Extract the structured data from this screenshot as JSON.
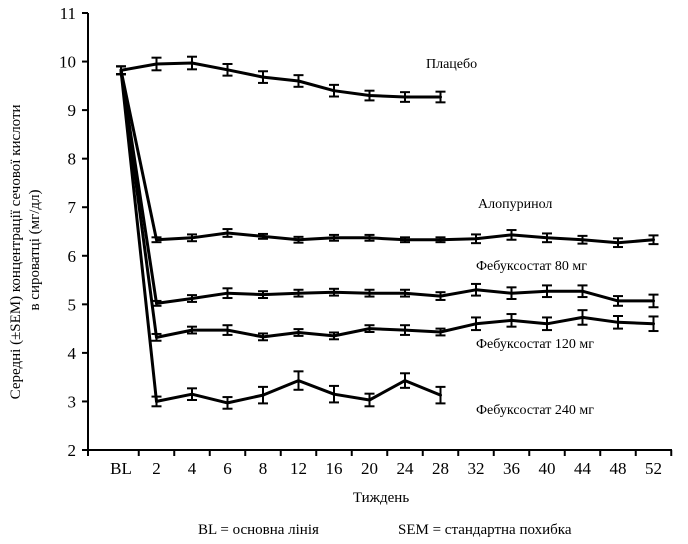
{
  "chart_data": {
    "type": "line",
    "title": "",
    "xlabel": "Тиждень",
    "ylabel": "Середні (±SEM) концентрації сечової кислоти в сироватці (мг/дл)",
    "ylabel_lines": [
      "Середні (±SEM) концентрації сечової кислоти",
      "в сироватці (мг/дл)"
    ],
    "ylim": [
      2,
      11
    ],
    "yticks": [
      2,
      3,
      4,
      5,
      6,
      7,
      8,
      9,
      10,
      11
    ],
    "categories": [
      "BL",
      "2",
      "4",
      "6",
      "8",
      "12",
      "16",
      "20",
      "24",
      "28",
      "32",
      "36",
      "40",
      "44",
      "48",
      "52"
    ],
    "series": [
      {
        "name": "Плацебо",
        "values": [
          9.82,
          9.95,
          9.97,
          9.83,
          9.68,
          9.6,
          9.4,
          9.3,
          9.27,
          9.27,
          null,
          null,
          null,
          null,
          null,
          null
        ],
        "errors": [
          0.08,
          0.13,
          0.13,
          0.12,
          0.12,
          0.12,
          0.12,
          0.1,
          0.1,
          0.11,
          null,
          null,
          null,
          null,
          null,
          null
        ]
      },
      {
        "name": "Алопуринол",
        "values": [
          9.82,
          6.33,
          6.37,
          6.47,
          6.4,
          6.33,
          6.37,
          6.37,
          6.33,
          6.33,
          6.35,
          6.43,
          6.37,
          6.33,
          6.27,
          6.33
        ],
        "errors": [
          0.08,
          0.05,
          0.07,
          0.08,
          0.05,
          0.06,
          0.06,
          0.06,
          0.05,
          0.05,
          0.09,
          0.1,
          0.09,
          0.08,
          0.09,
          0.09
        ]
      },
      {
        "name": "Фебуксостат 80 мг",
        "values": [
          9.82,
          5.02,
          5.12,
          5.23,
          5.2,
          5.23,
          5.25,
          5.23,
          5.23,
          5.17,
          5.3,
          5.23,
          5.27,
          5.27,
          5.07,
          5.07
        ],
        "errors": [
          0.08,
          0.05,
          0.07,
          0.1,
          0.07,
          0.07,
          0.07,
          0.07,
          0.07,
          0.08,
          0.12,
          0.12,
          0.12,
          0.12,
          0.1,
          0.13
        ]
      },
      {
        "name": "Фебуксостат 120 мг",
        "values": [
          9.82,
          4.32,
          4.47,
          4.47,
          4.33,
          4.42,
          4.35,
          4.5,
          4.47,
          4.43,
          4.6,
          4.67,
          4.6,
          4.73,
          4.63,
          4.6
        ],
        "errors": [
          0.08,
          0.07,
          0.07,
          0.1,
          0.07,
          0.07,
          0.07,
          0.07,
          0.1,
          0.07,
          0.13,
          0.13,
          0.13,
          0.15,
          0.13,
          0.15
        ]
      },
      {
        "name": "Фебуксостат 240 мг",
        "values": [
          9.82,
          3.0,
          3.15,
          2.97,
          3.13,
          3.43,
          3.15,
          3.03,
          3.43,
          3.13,
          null,
          null,
          null,
          null,
          null,
          null
        ],
        "errors": [
          0.08,
          0.1,
          0.12,
          0.12,
          0.17,
          0.19,
          0.17,
          0.13,
          0.15,
          0.17,
          null,
          null,
          null,
          null,
          null,
          null
        ]
      }
    ],
    "annotations": [
      "Плацебо",
      "Алопуринол",
      "Фебуксостат 80 мг",
      "Фебуксостат 120 мг",
      "Фебуксостат 240 мг"
    ],
    "legend": "inline labels next to lines",
    "grid": false
  },
  "footnotes": {
    "bl": "BL = основна лінія",
    "sem": "SEM = стандартна похибка"
  }
}
